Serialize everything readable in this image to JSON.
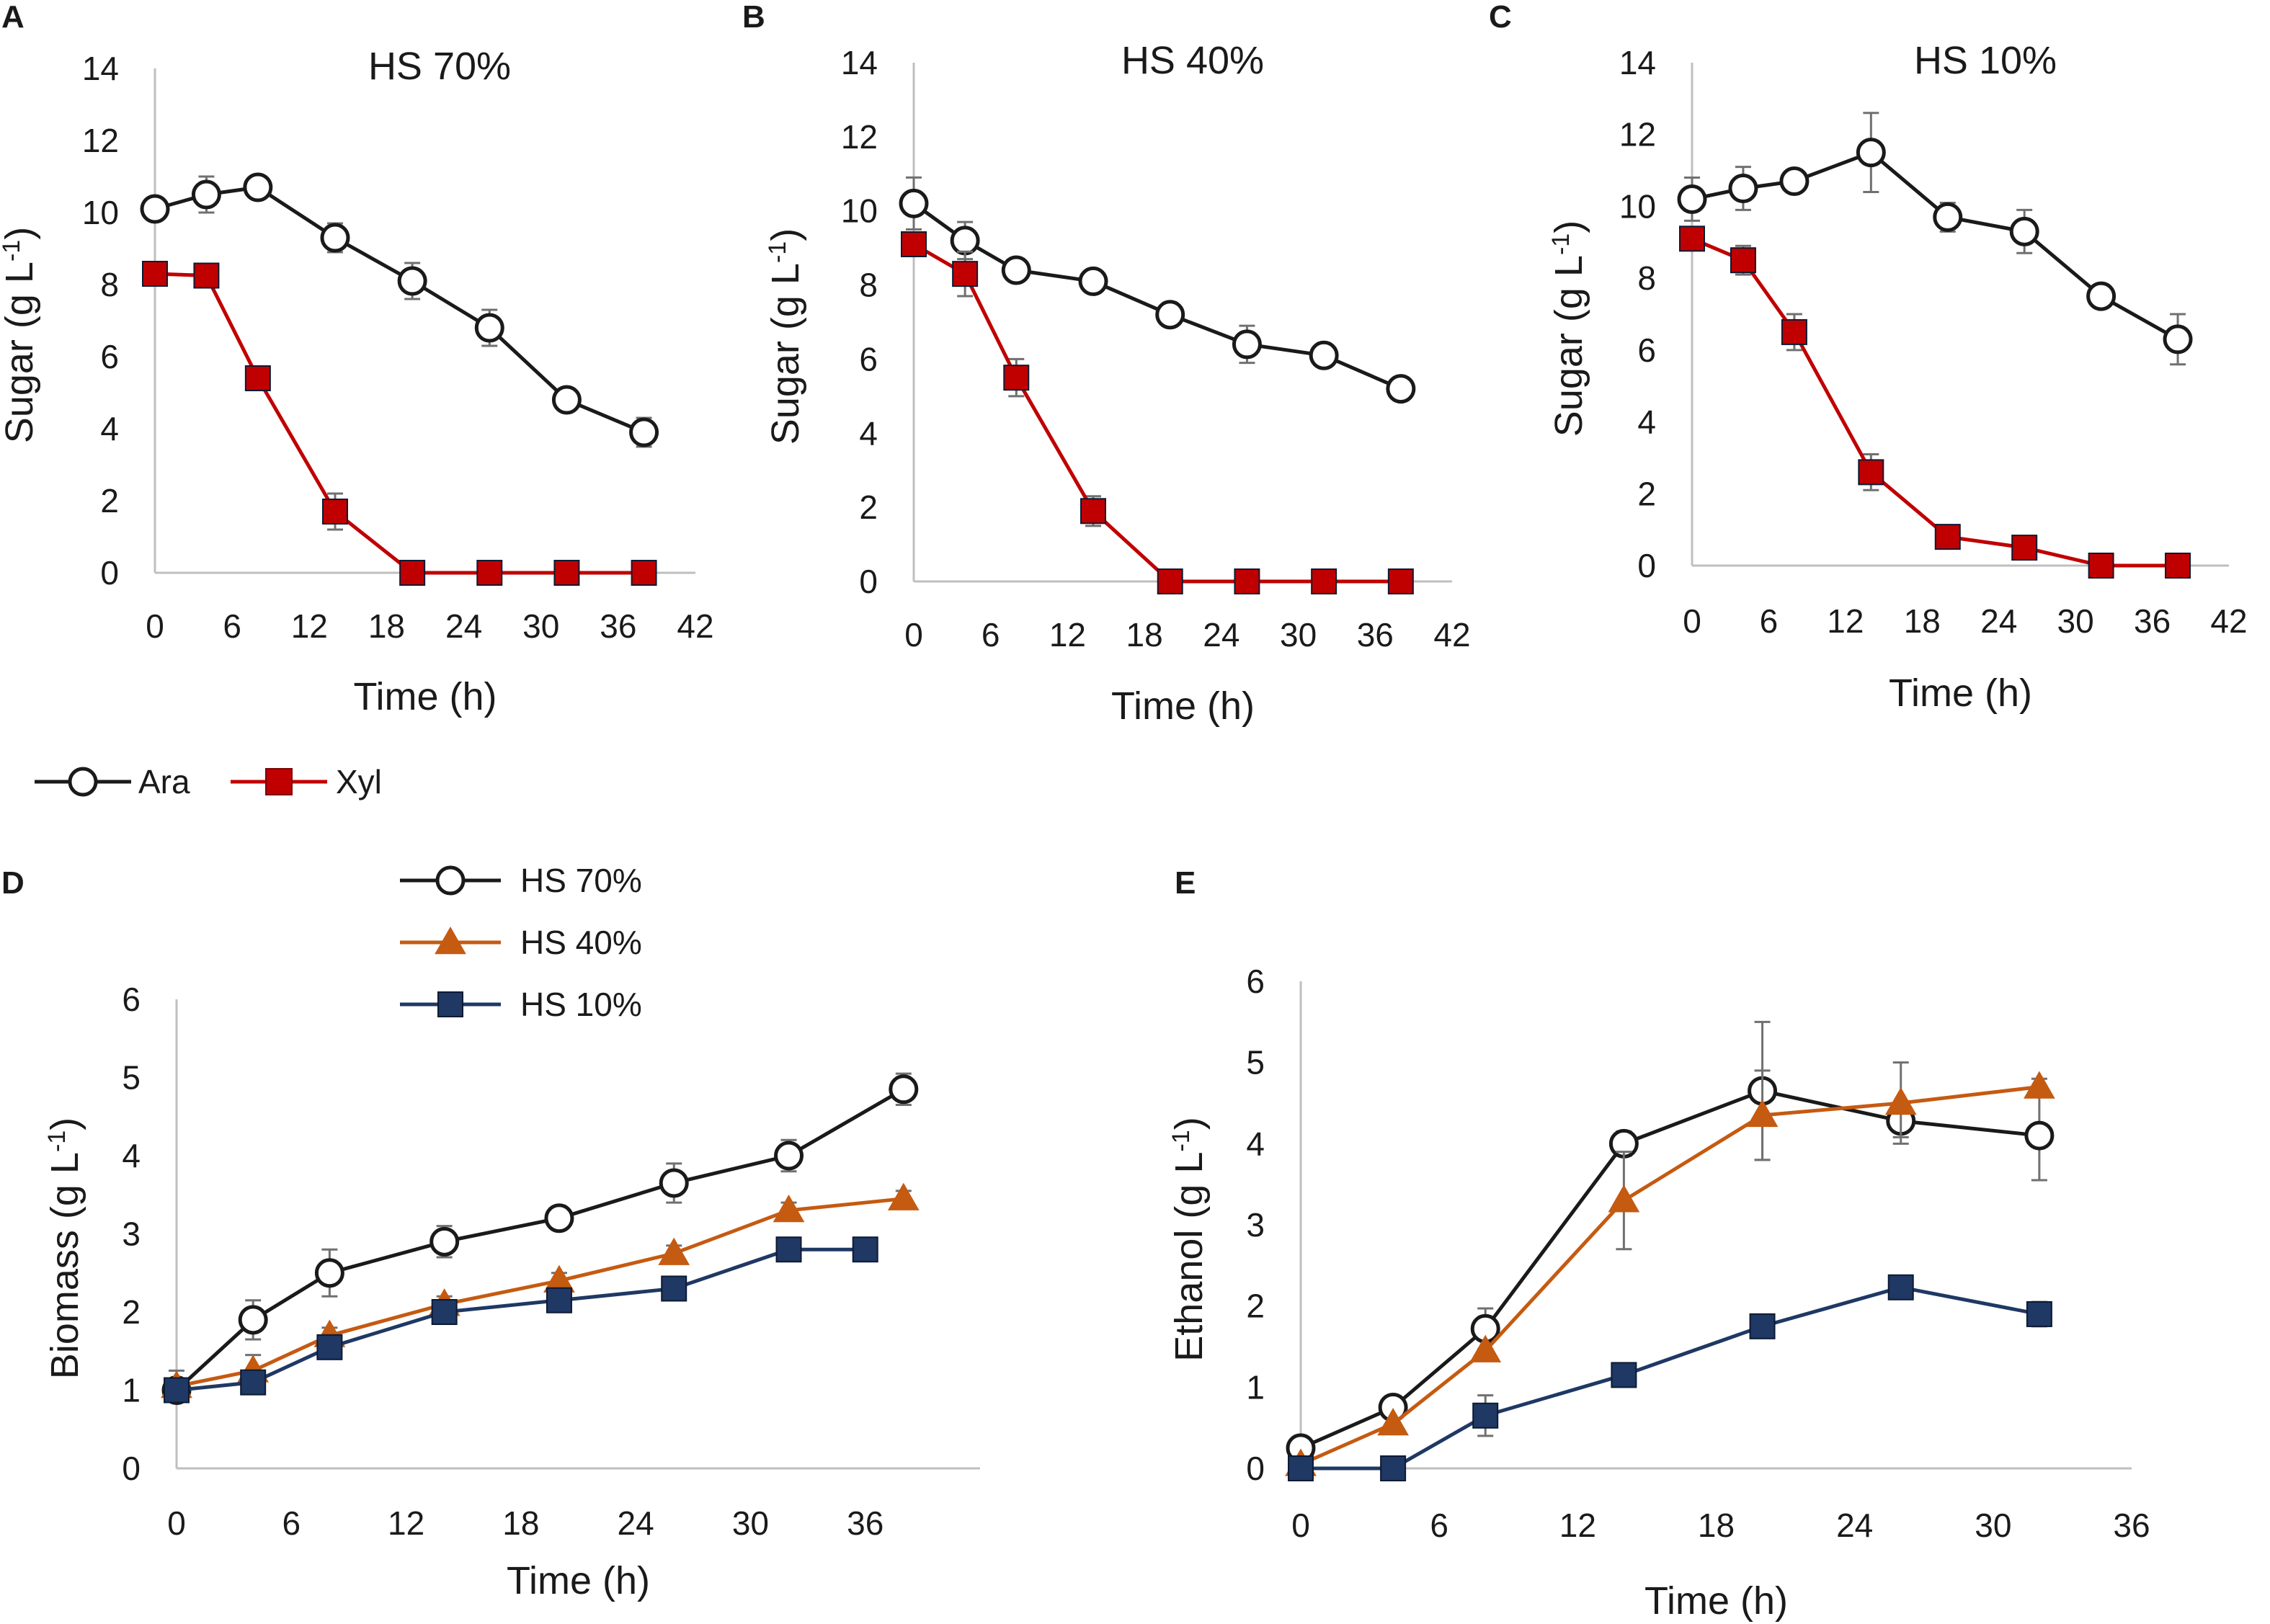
{
  "colors": {
    "ara": "#1a1a1a",
    "xyl": "#c00000",
    "hs70": "#1a1a1a",
    "hs40": "#c55a11",
    "hs10": "#1f3864",
    "errorbar": "#707070"
  },
  "sugar_legend": {
    "ara": "Ara",
    "xyl": "Xyl"
  },
  "chart_data": [
    {
      "panel": "A",
      "type": "line",
      "title": "HS 70%",
      "xlabel": "Time (h)",
      "ylabel": "Sugar (g L-1)",
      "ylabel_main": "Sugar (g L",
      "ylabel_sup": "-1",
      "ylabel_close": ")",
      "xlim": [
        0,
        42
      ],
      "ylim": [
        0,
        14
      ],
      "xticks": [
        0,
        6,
        12,
        18,
        24,
        30,
        36,
        42
      ],
      "yticks": [
        0,
        2,
        4,
        6,
        8,
        10,
        12,
        14
      ],
      "series": [
        {
          "name": "Ara",
          "marker": "circle",
          "color_key": "ara",
          "x": [
            0,
            4,
            8,
            14,
            20,
            26,
            32,
            38
          ],
          "y": [
            10.1,
            10.5,
            10.7,
            9.3,
            8.1,
            6.8,
            4.8,
            3.9
          ],
          "err": [
            0.0,
            0.5,
            0.0,
            0.4,
            0.5,
            0.5,
            0.0,
            0.4
          ]
        },
        {
          "name": "Xyl",
          "marker": "square",
          "color_key": "xyl",
          "x": [
            0,
            4,
            8,
            14,
            20,
            26,
            32,
            38
          ],
          "y": [
            8.3,
            8.25,
            5.4,
            1.7,
            0.0,
            0.0,
            0.0,
            0.0
          ],
          "err": [
            0.0,
            0.3,
            0.0,
            0.5,
            0.0,
            0.0,
            0.0,
            0.0
          ]
        }
      ]
    },
    {
      "panel": "B",
      "type": "line",
      "title": "HS 40%",
      "xlabel": "Time (h)",
      "ylabel": "Sugar (g L-1)",
      "ylabel_main": "Sugar  (g L",
      "ylabel_sup": "-1",
      "ylabel_close": ")",
      "xlim": [
        0,
        42
      ],
      "ylim": [
        0,
        14
      ],
      "xticks": [
        0,
        6,
        12,
        18,
        24,
        30,
        36,
        42
      ],
      "yticks": [
        0,
        2,
        4,
        6,
        8,
        10,
        12,
        14
      ],
      "series": [
        {
          "name": "Ara",
          "marker": "circle",
          "color_key": "ara",
          "x": [
            0,
            4,
            8,
            14,
            20,
            26,
            32,
            38
          ],
          "y": [
            10.2,
            9.2,
            8.4,
            8.1,
            7.2,
            6.4,
            6.1,
            5.2
          ],
          "err": [
            0.7,
            0.5,
            0.0,
            0.0,
            0.3,
            0.5,
            0.0,
            0.0
          ]
        },
        {
          "name": "Xyl",
          "marker": "square",
          "color_key": "xyl",
          "x": [
            0,
            4,
            8,
            14,
            20,
            26,
            32,
            38
          ],
          "y": [
            9.1,
            8.3,
            5.5,
            1.9,
            0.0,
            0.0,
            0.0,
            0.0
          ],
          "err": [
            0.0,
            0.6,
            0.5,
            0.4,
            0.0,
            0.0,
            0.0,
            0.0
          ]
        }
      ]
    },
    {
      "panel": "C",
      "type": "line",
      "title": "HS 10%",
      "xlabel": "Time (h)",
      "ylabel": "Sugar (g L-1)",
      "ylabel_main": "Sugar  (g L",
      "ylabel_sup": "-1",
      "ylabel_close": ")",
      "xlim": [
        0,
        42
      ],
      "ylim": [
        0,
        14
      ],
      "xticks": [
        0,
        6,
        12,
        18,
        24,
        30,
        36,
        42
      ],
      "yticks": [
        0,
        2,
        4,
        6,
        8,
        10,
        12,
        14
      ],
      "series": [
        {
          "name": "Ara",
          "marker": "circle",
          "color_key": "ara",
          "x": [
            0,
            4,
            8,
            14,
            20,
            26,
            32,
            38
          ],
          "y": [
            10.2,
            10.5,
            10.7,
            11.5,
            9.7,
            9.3,
            7.5,
            6.3
          ],
          "err": [
            0.6,
            0.6,
            0.0,
            1.1,
            0.4,
            0.6,
            0.0,
            0.7
          ]
        },
        {
          "name": "Xyl",
          "marker": "square",
          "color_key": "xyl",
          "x": [
            0,
            4,
            8,
            14,
            20,
            26,
            32,
            38
          ],
          "y": [
            9.1,
            8.5,
            6.5,
            2.6,
            0.8,
            0.5,
            0.0,
            0.0
          ],
          "err": [
            0.0,
            0.4,
            0.5,
            0.5,
            0.0,
            0.0,
            0.0,
            0.0
          ]
        }
      ]
    },
    {
      "panel": "D",
      "type": "line",
      "title": "",
      "xlabel": "Time (h)",
      "ylabel": "Biomass (g L-1)",
      "ylabel_main": "Biomass (g L",
      "ylabel_sup": "-1",
      "ylabel_close": ")",
      "xlim": [
        0,
        42
      ],
      "ylim": [
        0,
        6
      ],
      "xticks": [
        0,
        6,
        12,
        18,
        24,
        30,
        36
      ],
      "yticks": [
        0,
        1,
        2,
        3,
        4,
        5,
        6
      ],
      "series": [
        {
          "name": "HS 70%",
          "marker": "circle",
          "color_key": "hs70",
          "x": [
            0,
            4,
            8,
            14,
            20,
            26,
            32,
            38
          ],
          "y": [
            1.0,
            1.9,
            2.5,
            2.9,
            3.2,
            3.65,
            4.0,
            4.85
          ],
          "err": [
            0.1,
            0.25,
            0.3,
            0.2,
            0.1,
            0.25,
            0.2,
            0.2
          ]
        },
        {
          "name": "HS 40%",
          "marker": "triangle",
          "color_key": "hs40",
          "x": [
            0,
            4,
            8,
            14,
            20,
            26,
            32,
            38
          ],
          "y": [
            1.05,
            1.25,
            1.7,
            2.1,
            2.4,
            2.75,
            3.3,
            3.45
          ],
          "err": [
            0.2,
            0.2,
            0.1,
            0.1,
            0.1,
            0.1,
            0.1,
            0.1
          ]
        },
        {
          "name": "HS 10%",
          "marker": "square",
          "color_key": "hs10",
          "x": [
            0,
            4,
            8,
            14,
            20,
            26,
            32,
            36
          ],
          "y": [
            1.0,
            1.1,
            1.55,
            2.0,
            2.15,
            2.3,
            2.8,
            2.8
          ],
          "err": [
            0.1,
            0.1,
            0.1,
            0.0,
            0.0,
            0.0,
            0.0,
            0.0
          ]
        }
      ]
    },
    {
      "panel": "E",
      "type": "line",
      "title": "",
      "xlabel": "Time (h)",
      "ylabel": "Ethanol (g L-1)",
      "ylabel_main": "Ethanol (g L",
      "ylabel_sup": "-1",
      "ylabel_close": ")",
      "xlim": [
        0,
        36
      ],
      "ylim": [
        0,
        6
      ],
      "xticks": [
        0,
        6,
        12,
        18,
        24,
        30,
        36
      ],
      "yticks": [
        0,
        1,
        2,
        3,
        4,
        5,
        6
      ],
      "series": [
        {
          "name": "HS 70%",
          "marker": "circle",
          "color_key": "hs70",
          "x": [
            0,
            4,
            8,
            14,
            20,
            26,
            32
          ],
          "y": [
            0.25,
            0.75,
            1.72,
            4.0,
            4.65,
            4.28,
            4.1
          ],
          "err": [
            0.0,
            0.0,
            0.25,
            0.15,
            0.85,
            0.2,
            0.55
          ]
        },
        {
          "name": "HS 40%",
          "marker": "triangle",
          "color_key": "hs40",
          "x": [
            0,
            4,
            8,
            14,
            20,
            26,
            32
          ],
          "y": [
            0.05,
            0.55,
            1.45,
            3.3,
            4.35,
            4.5,
            4.7
          ],
          "err": [
            0.0,
            0.0,
            0.0,
            0.6,
            0.55,
            0.5,
            0.1
          ]
        },
        {
          "name": "HS 10%",
          "marker": "square",
          "color_key": "hs10",
          "x": [
            0,
            4,
            8,
            14,
            20,
            26,
            32
          ],
          "y": [
            0.0,
            0.0,
            0.65,
            1.15,
            1.75,
            2.23,
            1.9
          ],
          "err": [
            0.0,
            0.0,
            0.25,
            0.0,
            0.0,
            0.0,
            0.15
          ]
        }
      ]
    }
  ]
}
